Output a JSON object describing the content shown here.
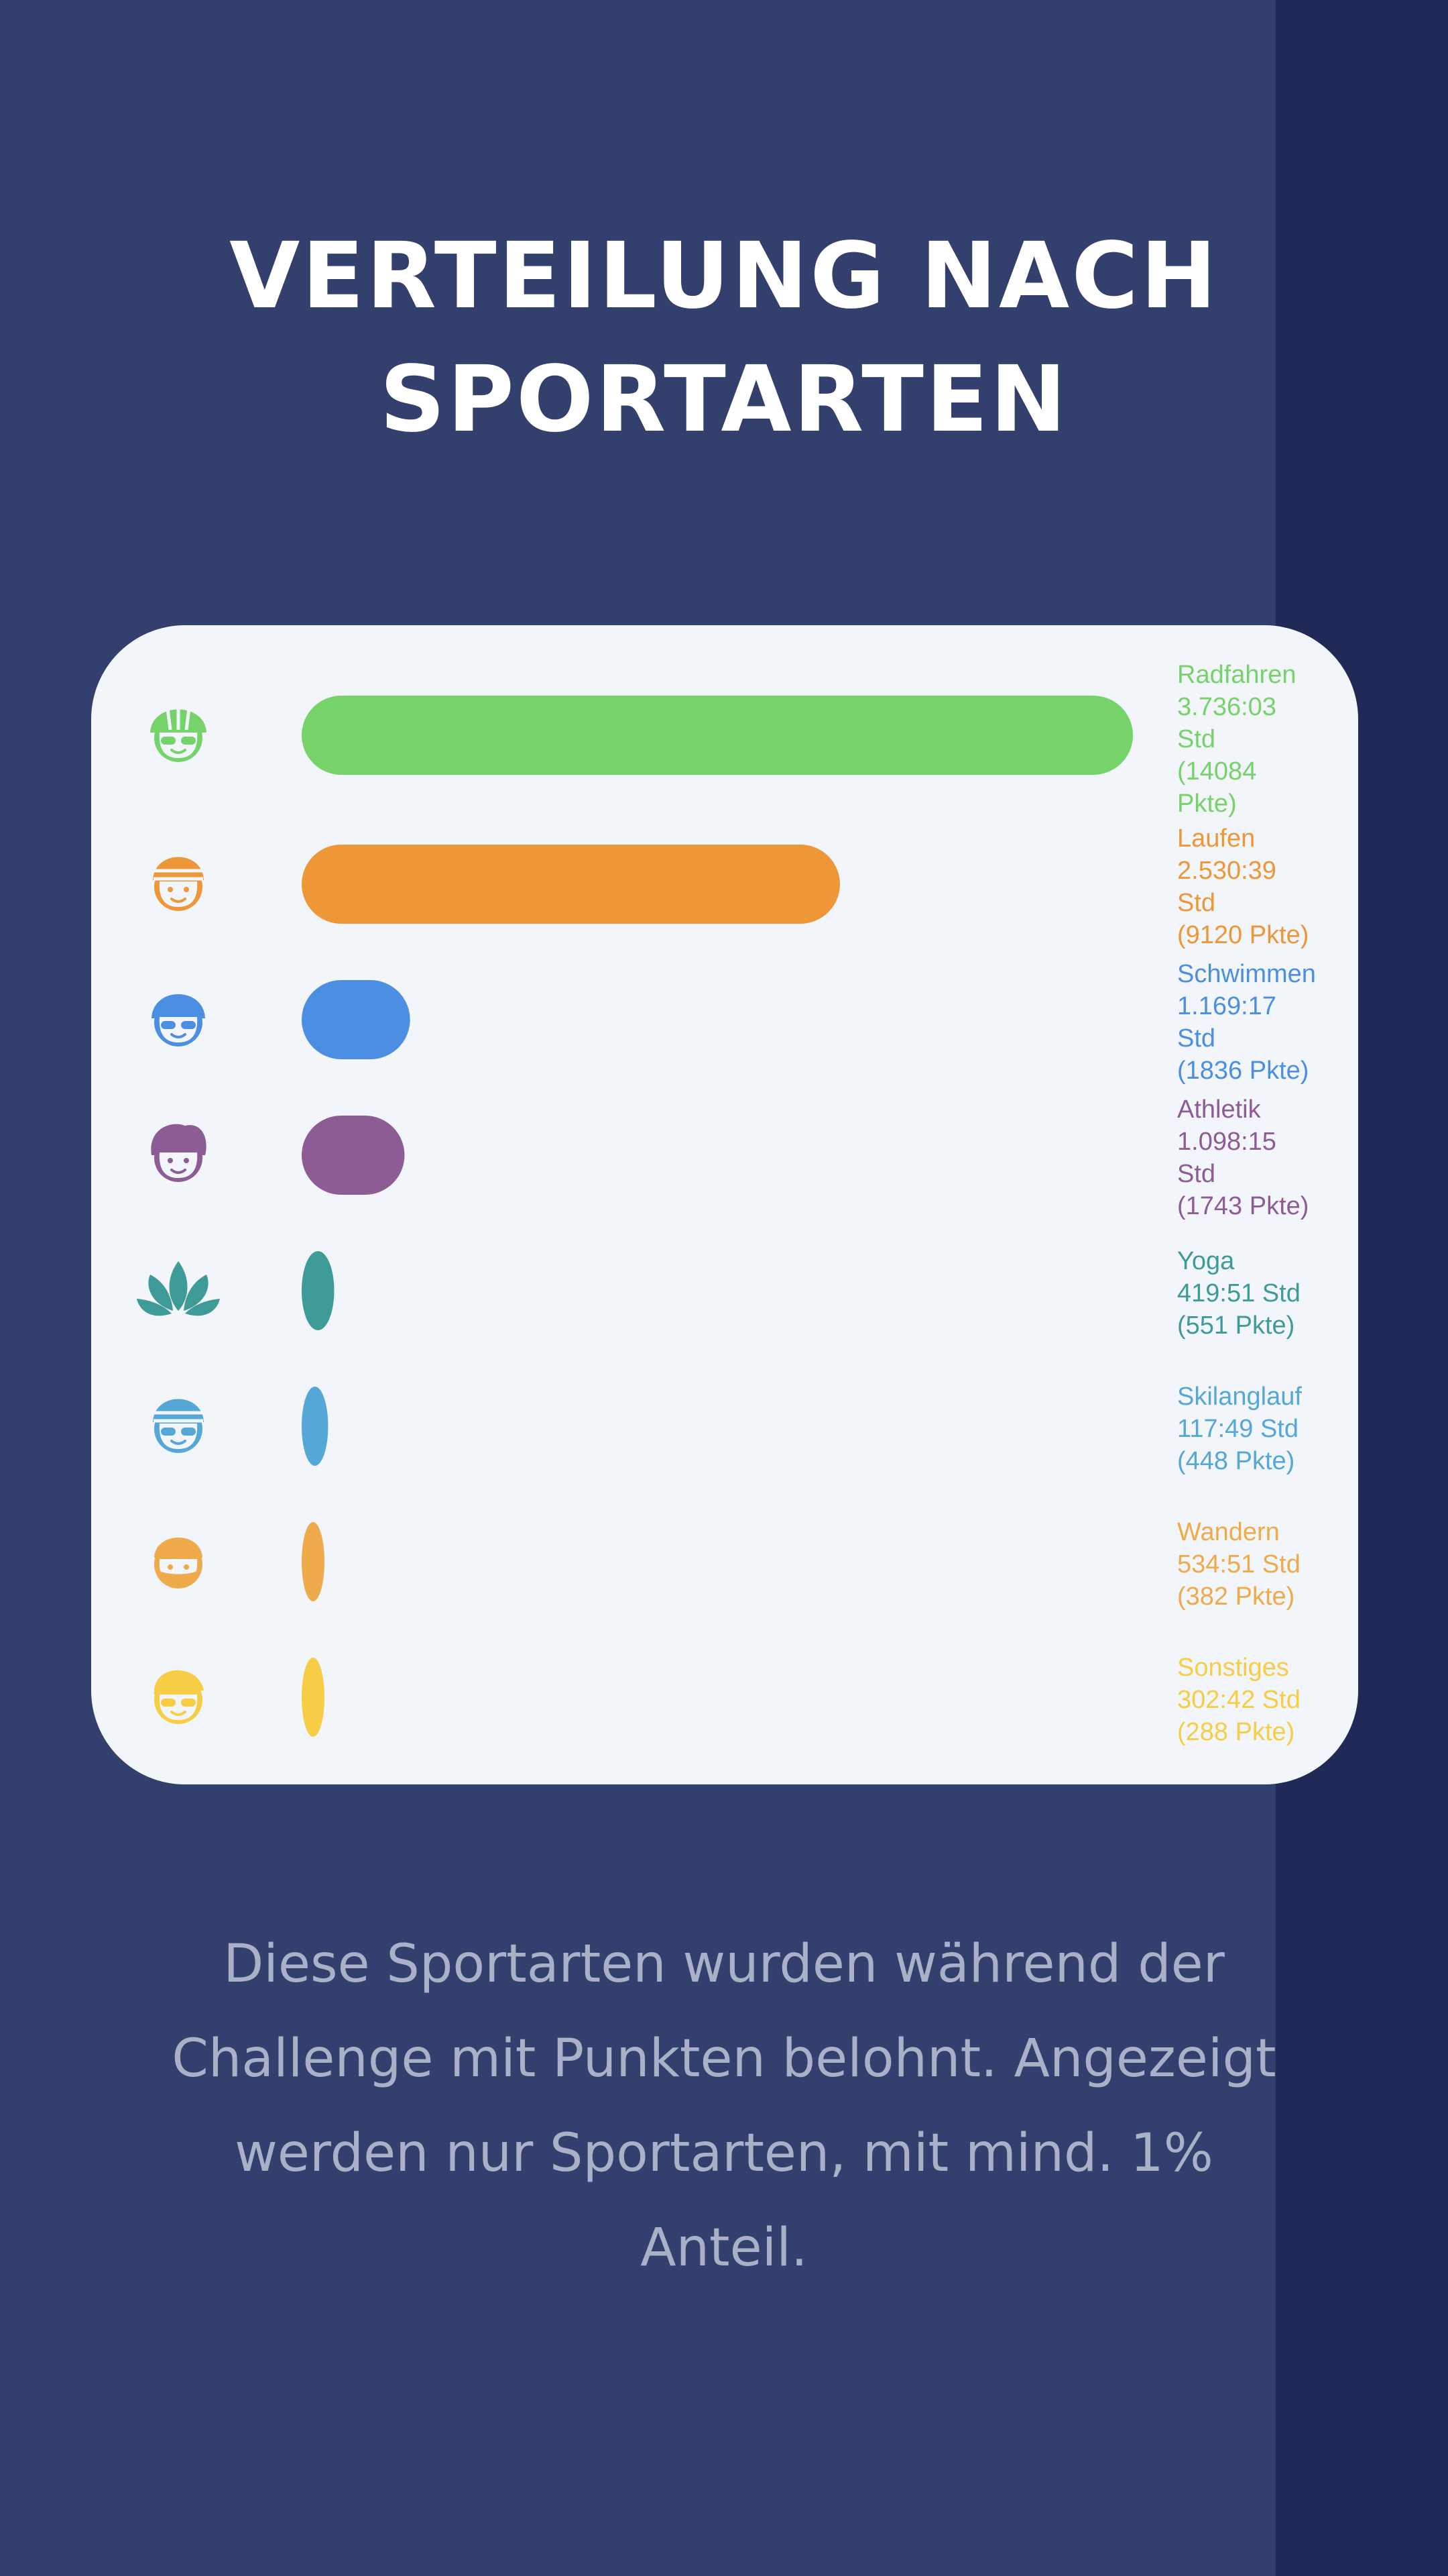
{
  "title": {
    "line1": "VERTEILUNG NACH",
    "line2": "SPORTARTEN"
  },
  "caption": "Diese Sportarten wurden während der Challenge mit Punkten belohnt. Angezeigt werden nur Sportarten, mit mind. 1% Anteil.",
  "colors": {
    "background": "#333f6d",
    "strip": "#212a56",
    "card": "#f2f5f9"
  },
  "chart_data": {
    "type": "bar",
    "orientation": "horizontal",
    "categories": [
      "Radfahren",
      "Laufen",
      "Schwimmen",
      "Athletik",
      "Yoga",
      "Skilanglauf",
      "Wandern",
      "Sonstiges"
    ],
    "values": [
      14084,
      9120,
      1836,
      1743,
      551,
      448,
      382,
      288
    ],
    "unit": "Pkte",
    "xlim": [
      0,
      14084
    ],
    "grid": false,
    "legend": "none",
    "labels": [
      [
        "Radfahren",
        "3.736:03",
        "Std",
        "(14084",
        "Pkte)"
      ],
      [
        "Laufen",
        "2.530:39",
        "Std",
        "(9120 Pkte)"
      ],
      [
        "Schwimmen",
        "1.169:17",
        "Std",
        "(1836 Pkte)"
      ],
      [
        "Athletik",
        "1.098:15",
        "Std",
        "(1743 Pkte)"
      ],
      [
        "Yoga",
        "419:51 Std",
        "(551 Pkte)"
      ],
      [
        "Skilanglauf",
        "117:49 Std",
        "(448 Pkte)"
      ],
      [
        "Wandern",
        "534:51 Std",
        "(382 Pkte)"
      ],
      [
        "Sonstiges",
        "302:42 Std",
        "(288 Pkte)"
      ]
    ],
    "colors": [
      "#76d36a",
      "#ed9738",
      "#4c8fe2",
      "#8e5c95",
      "#3e9b98",
      "#54a7d6",
      "#efaa4b",
      "#f6cd44"
    ],
    "icons": [
      "cyclist-helmet-icon",
      "runner-cap-icon",
      "swimmer-goggles-icon",
      "athlete-face-icon",
      "lotus-icon",
      "skier-beanie-icon",
      "hiker-beard-icon",
      "sunglasses-face-icon"
    ]
  }
}
